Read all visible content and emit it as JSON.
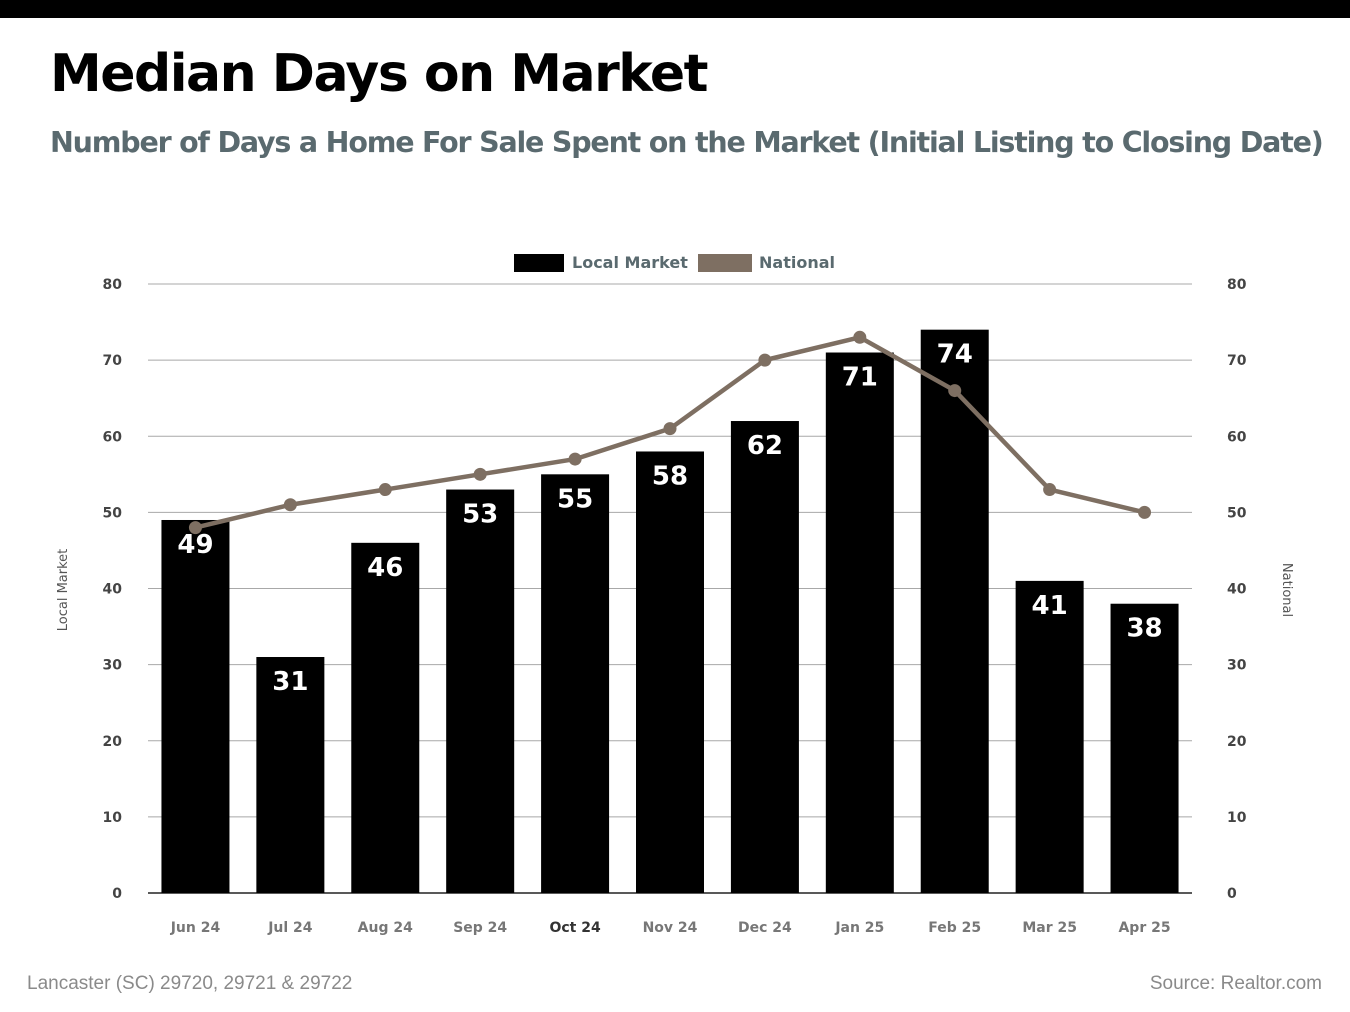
{
  "header": {
    "title": "Median Days on Market",
    "subtitle": "Number of Days a Home For Sale Spent on the Market (Initial Listing to Closing Date)"
  },
  "footer": {
    "area": "Lancaster (SC) 29720, 29721 & 29722",
    "source": "Source: Realtor.com"
  },
  "colors": {
    "local": "#000000",
    "national": "#7e6f62",
    "grid": "#a8a8a8",
    "axis_text": "#444444",
    "tick_text": "#777777"
  },
  "chart_data": {
    "type": "bar",
    "categories": [
      "Jun 24",
      "Jul 24",
      "Aug 24",
      "Sep 24",
      "Oct 24",
      "Nov 24",
      "Dec 24",
      "Jan 25",
      "Feb 25",
      "Mar 25",
      "Apr 25"
    ],
    "series": [
      {
        "name": "Local Market",
        "type": "bar",
        "axis": "left",
        "values": [
          49,
          31,
          46,
          53,
          55,
          58,
          62,
          71,
          74,
          41,
          38
        ]
      },
      {
        "name": "National",
        "type": "line",
        "axis": "right",
        "values": [
          48,
          51,
          53,
          55,
          57,
          61,
          70,
          73,
          66,
          53,
          50
        ]
      }
    ],
    "ylabel": "Local Market",
    "y2label": "National",
    "ylim": [
      0,
      80
    ],
    "y2lim": [
      0,
      80
    ],
    "yticks": [
      0,
      10,
      20,
      30,
      40,
      50,
      60,
      70,
      80
    ],
    "grid": true,
    "legend": "top-center",
    "data_labels": "bars"
  }
}
